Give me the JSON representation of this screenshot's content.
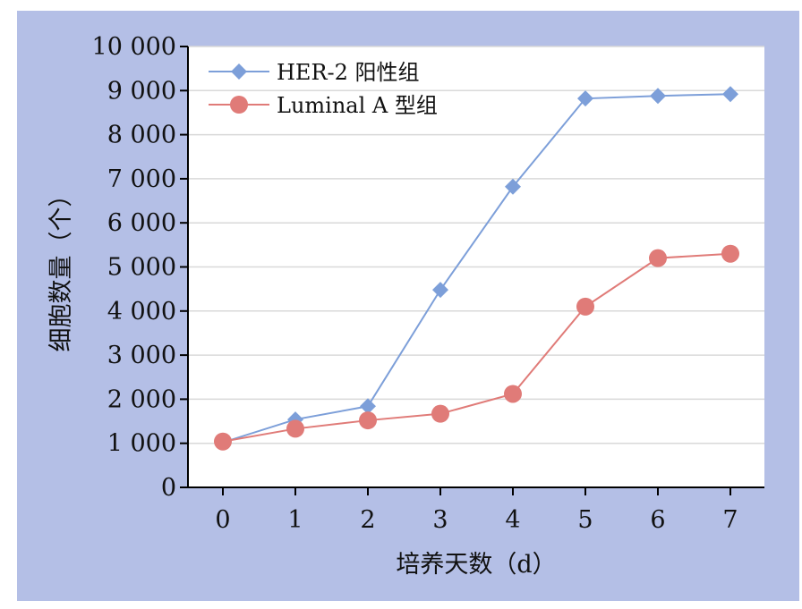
{
  "chart_data": {
    "type": "line",
    "xlabel": "培养天数（d）",
    "ylabel": "细胞数量（个）",
    "x": [
      0,
      1,
      2,
      3,
      4,
      5,
      6,
      7
    ],
    "x_tick_labels": [
      "0",
      "1",
      "2",
      "3",
      "4",
      "5",
      "6",
      "7"
    ],
    "ylim": [
      0,
      10000
    ],
    "y_ticks": [
      0,
      1000,
      2000,
      3000,
      4000,
      5000,
      6000,
      7000,
      8000,
      9000,
      10000
    ],
    "y_tick_labels": [
      "0",
      "1 000",
      "2 000",
      "3 000",
      "4 000",
      "5 000",
      "6 000",
      "7 000",
      "8 000",
      "9 000",
      "10 000"
    ],
    "grid": "horizontal",
    "legend_position": "top-left",
    "series": [
      {
        "name": "HER-2 阳性组",
        "marker": "diamond",
        "color": "#7d9fd9",
        "values": [
          1020,
          1540,
          1840,
          4480,
          6820,
          8820,
          8880,
          8920
        ]
      },
      {
        "name": "Luminal A 型组",
        "marker": "circle",
        "color": "#e07b78",
        "values": [
          1040,
          1330,
          1520,
          1670,
          2120,
          4100,
          5200,
          5300
        ]
      }
    ]
  }
}
